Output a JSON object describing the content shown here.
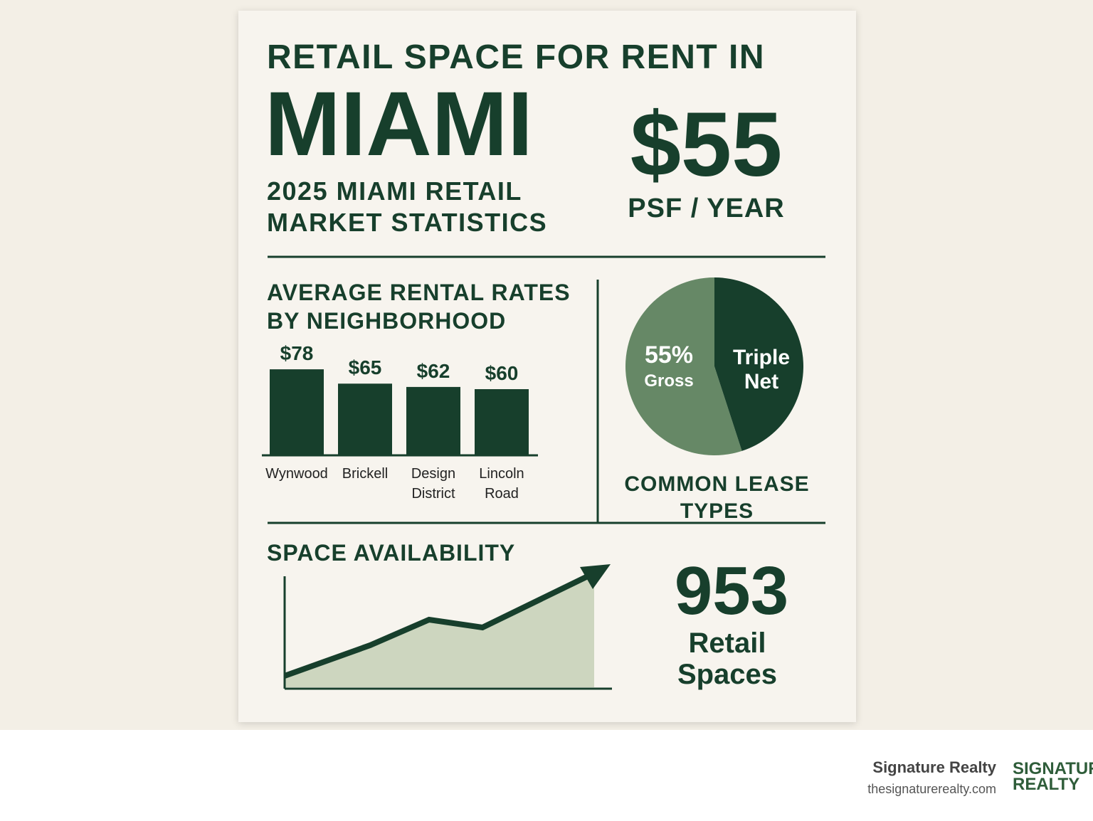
{
  "header": {
    "title": "RETAIL SPACE FOR RENT IN",
    "city": "MIAMI",
    "subtitle": "2025 MIAMI RETAIL MARKET STATISTICS"
  },
  "rent_stat": {
    "value": "$55",
    "unit": "PSF / YEAR"
  },
  "chart_data": [
    {
      "type": "bar",
      "title": "AVERAGE RENTAL RATES BY NEIGHBORHOOD",
      "categories": [
        "Wynwood",
        "Brickell",
        "Design District",
        "Lincoln Road"
      ],
      "values": [
        78,
        65,
        62,
        60
      ],
      "value_labels": [
        "$78",
        "$65",
        "$62",
        "$60"
      ],
      "color": "#173f2c"
    },
    {
      "type": "pie",
      "title": "COMMON LEASE TYPES",
      "categories": [
        "Gross",
        "Triple Net"
      ],
      "values": [
        55,
        45
      ],
      "value_labels": [
        "55%",
        null
      ],
      "colors": [
        "#668866",
        "#173f2c"
      ]
    }
  ],
  "availability": {
    "title": "SPACE AVAILABILITY",
    "count": "953",
    "unit": "Retail Spaces"
  },
  "footer": {
    "company": "Signature Realty",
    "website": "thesignaturerealty.com",
    "logo_top": "SIGNATURE",
    "logo_bottom": "REALTY"
  }
}
